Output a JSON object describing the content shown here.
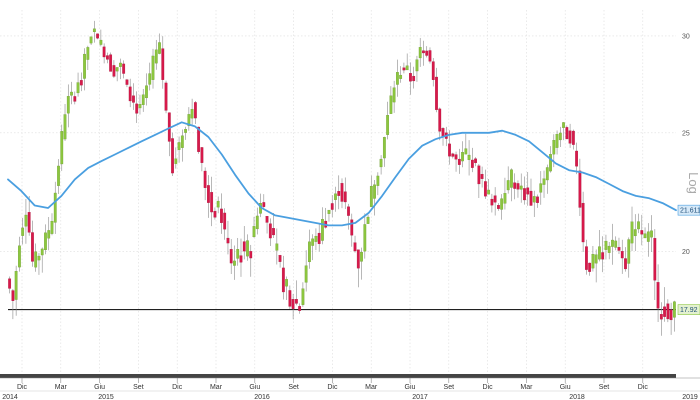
{
  "chart_data": {
    "type": "candlestick",
    "scale_label": "Log",
    "y_axis": {
      "scale": "log",
      "ylim": [
        16.3,
        31.5
      ],
      "ticks": [
        "30",
        "25",
        "20"
      ]
    },
    "x_axis": {
      "month_ticks": [
        "Dic",
        "Mar",
        "Giu",
        "Set",
        "Dic",
        "Mar",
        "Giu",
        "Set",
        "Dic",
        "Mar",
        "Giu",
        "Set",
        "Dic",
        "Mar",
        "Giu",
        "Set",
        "Dic"
      ],
      "year_labels": [
        "2014",
        "2015",
        "2016",
        "2017",
        "2018",
        "2019"
      ]
    },
    "last_price": {
      "label": "17.92",
      "value": 17.92
    },
    "moving_average": {
      "label": "21.611",
      "value": 21.611,
      "color": "#4a9fe0"
    },
    "support_level": 17.92,
    "colors": {
      "up": "#8cc63f",
      "down": "#d7194a",
      "ma": "#4a9fe0",
      "support": "#000000"
    },
    "grid": true,
    "price_path": [
      [
        0,
        19.0
      ],
      [
        1,
        18.2
      ],
      [
        2,
        20.6
      ],
      [
        3,
        21.8
      ],
      [
        4,
        19.4
      ],
      [
        5,
        20.0
      ],
      [
        6,
        20.5
      ],
      [
        7,
        21.5
      ],
      [
        8,
        24.0
      ],
      [
        9,
        26.5
      ],
      [
        10,
        26.8
      ],
      [
        11,
        27.5
      ],
      [
        12,
        29.0
      ],
      [
        13,
        30.5
      ],
      [
        14,
        29.5
      ],
      [
        15,
        29.0
      ],
      [
        16,
        28.0
      ],
      [
        17,
        28.5
      ],
      [
        18,
        27.5
      ],
      [
        19,
        26.5
      ],
      [
        20,
        26.0
      ],
      [
        21,
        27.0
      ],
      [
        22,
        28.5
      ],
      [
        23,
        29.5
      ],
      [
        24,
        26.0
      ],
      [
        25,
        23.5
      ],
      [
        26,
        24.5
      ],
      [
        27,
        25.5
      ],
      [
        28,
        26.5
      ],
      [
        29,
        24.0
      ],
      [
        30,
        22.5
      ],
      [
        31,
        21.5
      ],
      [
        32,
        21.8
      ],
      [
        33,
        20.5
      ],
      [
        34,
        19.5
      ],
      [
        35,
        20.2
      ],
      [
        36,
        20.0
      ],
      [
        37,
        20.5
      ],
      [
        38,
        22.0
      ],
      [
        39,
        21.5
      ],
      [
        40,
        20.5
      ],
      [
        41,
        19.5
      ],
      [
        42,
        18.5
      ],
      [
        43,
        18.3
      ],
      [
        44,
        18.0
      ],
      [
        45,
        19.5
      ],
      [
        46,
        20.5
      ],
      [
        47,
        20.5
      ],
      [
        48,
        21.5
      ],
      [
        49,
        22.0
      ],
      [
        50,
        22.5
      ],
      [
        51,
        21.8
      ],
      [
        52,
        20.5
      ],
      [
        53,
        19.5
      ],
      [
        54,
        21.0
      ],
      [
        55,
        22.5
      ],
      [
        56,
        23.5
      ],
      [
        57,
        25.0
      ],
      [
        58,
        27.0
      ],
      [
        59,
        28.0
      ],
      [
        60,
        28.3
      ],
      [
        61,
        27.5
      ],
      [
        62,
        29.0
      ],
      [
        63,
        29.5
      ],
      [
        64,
        28.5
      ],
      [
        65,
        25.5
      ],
      [
        66,
        24.5
      ],
      [
        67,
        24.0
      ],
      [
        68,
        23.5
      ],
      [
        69,
        24.0
      ],
      [
        70,
        23.8
      ],
      [
        71,
        23.0
      ],
      [
        72,
        22.5
      ],
      [
        73,
        22.0
      ],
      [
        74,
        21.8
      ],
      [
        75,
        22.5
      ],
      [
        76,
        23.0
      ],
      [
        77,
        22.5
      ],
      [
        78,
        22.3
      ],
      [
        79,
        22.0
      ],
      [
        80,
        22.3
      ],
      [
        81,
        23.0
      ],
      [
        82,
        24.0
      ],
      [
        83,
        25.0
      ],
      [
        84,
        25.0
      ],
      [
        85,
        24.8
      ],
      [
        86,
        23.0
      ],
      [
        87,
        19.5
      ],
      [
        88,
        19.5
      ],
      [
        89,
        19.8
      ],
      [
        90,
        20.0
      ],
      [
        91,
        20.5
      ],
      [
        92,
        20.0
      ],
      [
        93,
        19.5
      ],
      [
        94,
        20.8
      ],
      [
        95,
        21.0
      ],
      [
        96,
        20.5
      ],
      [
        97,
        20.5
      ],
      [
        98,
        18.0
      ],
      [
        99,
        17.9
      ],
      [
        100,
        17.92
      ]
    ],
    "ma_path": [
      [
        0,
        22.9
      ],
      [
        2,
        22.4
      ],
      [
        4,
        21.8
      ],
      [
        6,
        21.7
      ],
      [
        8,
        22.2
      ],
      [
        10,
        22.9
      ],
      [
        12,
        23.4
      ],
      [
        14,
        23.7
      ],
      [
        16,
        24.0
      ],
      [
        18,
        24.3
      ],
      [
        20,
        24.6
      ],
      [
        22,
        24.9
      ],
      [
        24,
        25.2
      ],
      [
        26,
        25.5
      ],
      [
        28,
        25.3
      ],
      [
        30,
        24.8
      ],
      [
        32,
        24.0
      ],
      [
        34,
        23.1
      ],
      [
        36,
        22.3
      ],
      [
        38,
        21.7
      ],
      [
        40,
        21.4
      ],
      [
        42,
        21.3
      ],
      [
        44,
        21.2
      ],
      [
        46,
        21.1
      ],
      [
        48,
        21.0
      ],
      [
        50,
        21.0
      ],
      [
        52,
        21.1
      ],
      [
        54,
        21.5
      ],
      [
        56,
        22.2
      ],
      [
        58,
        23.0
      ],
      [
        60,
        23.8
      ],
      [
        62,
        24.4
      ],
      [
        64,
        24.7
      ],
      [
        66,
        24.9
      ],
      [
        68,
        25.0
      ],
      [
        70,
        25.0
      ],
      [
        72,
        25.0
      ],
      [
        74,
        25.1
      ],
      [
        76,
        24.9
      ],
      [
        78,
        24.6
      ],
      [
        80,
        24.1
      ],
      [
        82,
        23.6
      ],
      [
        84,
        23.3
      ],
      [
        86,
        23.2
      ],
      [
        88,
        23.0
      ],
      [
        90,
        22.7
      ],
      [
        92,
        22.4
      ],
      [
        94,
        22.2
      ],
      [
        96,
        22.1
      ],
      [
        98,
        21.9
      ],
      [
        100,
        21.611
      ]
    ]
  }
}
